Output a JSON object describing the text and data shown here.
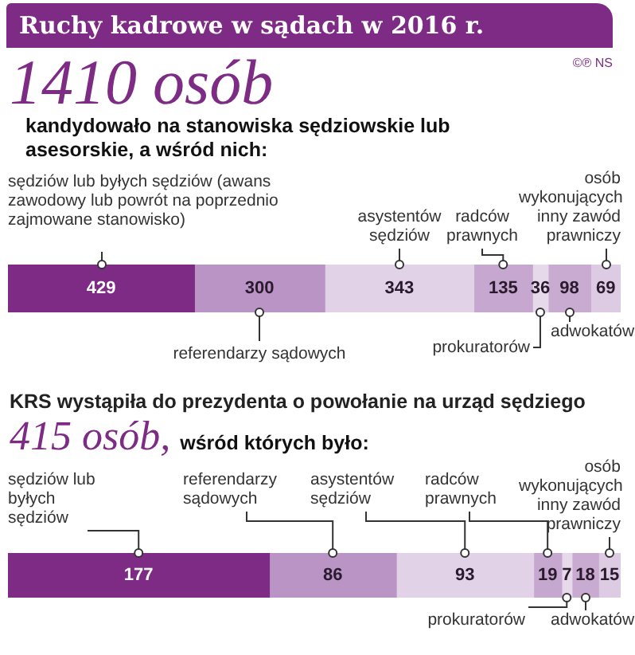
{
  "chart_data": [
    {
      "type": "bar",
      "orientation": "horizontal",
      "stacked": true,
      "title": "Ruchy kadrowe w sądach w 2016 r.",
      "subtitle": "1410 osób",
      "annotations": [
        "kandydowało na stanowiska sędziowskie lub asesorskie, a wśród nich:",
        "©℗ NS"
      ],
      "categories": [
        null
      ],
      "xlim": [
        0,
        1410
      ],
      "tick_labels": false,
      "grid": false,
      "legend": false,
      "data_labels": true,
      "series": [
        {
          "name": "sędziów lub byłych sędziów (awans zawodowy lub powrót na poprzednio zajmowane stanowisko)",
          "color": "#7d2b84",
          "values": [
            429
          ]
        },
        {
          "name": "referendarzy sądowych",
          "color": "#b994c4",
          "values": [
            300
          ]
        },
        {
          "name": "asystentów sędziów",
          "color": "#e2d2e7",
          "values": [
            343
          ]
        },
        {
          "name": "radców prawnych",
          "color": "#c6a7cf",
          "values": [
            135
          ]
        },
        {
          "name": "prokuratorów",
          "color": "#e6d9ea",
          "values": [
            36
          ]
        },
        {
          "name": "adwokatów",
          "color": "#c9abd1",
          "values": [
            98
          ]
        },
        {
          "name": "osób wykonujących inny zawód prawniczy",
          "color": "#ddcbe3",
          "values": [
            69
          ]
        }
      ]
    },
    {
      "type": "bar",
      "orientation": "horizontal",
      "stacked": true,
      "title": "KRS wystąpiła do prezydenta o powołanie na urząd sędziego",
      "subtitle": "415 osób,",
      "annotations": [
        "wśród których było:"
      ],
      "categories": [
        null
      ],
      "xlim": [
        0,
        415
      ],
      "tick_labels": false,
      "grid": false,
      "legend": false,
      "data_labels": true,
      "series": [
        {
          "name": "sędziów lub byłych sędziów",
          "color": "#7d2b84",
          "values": [
            177
          ]
        },
        {
          "name": "referendarzy sądowych",
          "color": "#b994c4",
          "values": [
            86
          ]
        },
        {
          "name": "asystentów sędziów",
          "color": "#e2d2e7",
          "values": [
            93
          ]
        },
        {
          "name": "radców prawnych",
          "color": "#c6a7cf",
          "values": [
            19
          ]
        },
        {
          "name": "prokuratorów",
          "color": "#e6d9ea",
          "values": [
            7
          ]
        },
        {
          "name": "adwokatów",
          "color": "#c9abd1",
          "values": [
            18
          ]
        },
        {
          "name": "osób wykonujących inny zawód prawniczy",
          "color": "#ddcbe3",
          "values": [
            15
          ]
        }
      ]
    }
  ]
}
